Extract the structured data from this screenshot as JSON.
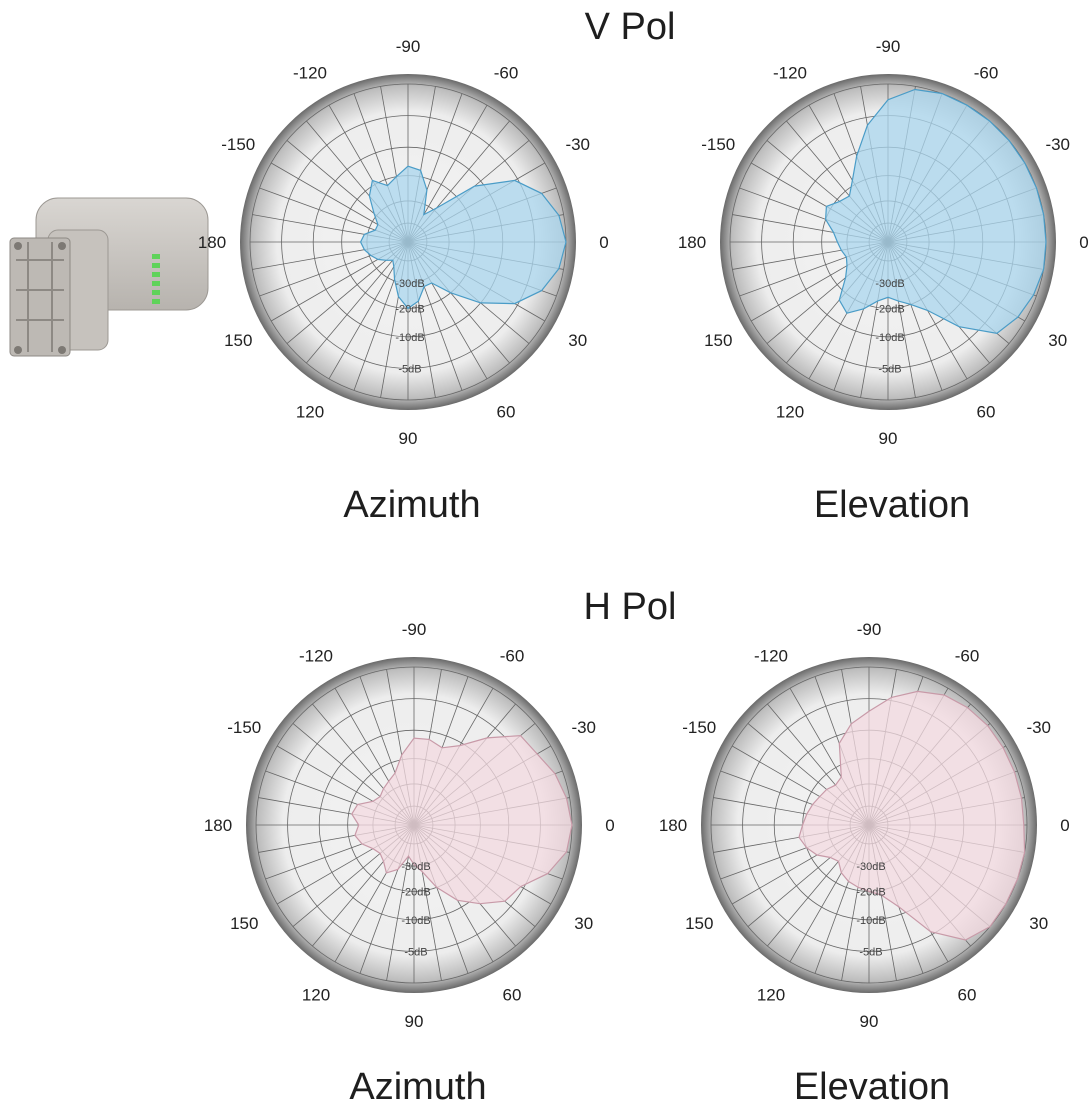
{
  "sections": [
    {
      "title": "V Pol",
      "captions": [
        "Azimuth",
        "Elevation"
      ]
    },
    {
      "title": "H Pol",
      "captions": [
        "Azimuth",
        "Elevation"
      ]
    }
  ],
  "device_image": {
    "name": "antenna-device-photo",
    "led_color": "#5fd35a"
  },
  "colors": {
    "vpol_fill": "#a9d6ee",
    "vpol_stroke": "#4a9cc7",
    "hpol_fill": "#f3d9e0",
    "hpol_stroke": "#c89aa8",
    "grid": "#666666",
    "rim": "#6d6d6d"
  },
  "chart_data": [
    {
      "type": "polar",
      "title": "V Pol",
      "caption": "Azimuth",
      "angle_labels": [
        "-90",
        "-60",
        "-30",
        "0",
        "30",
        "60",
        "90",
        "120",
        "150",
        "180",
        "-150",
        "-120"
      ],
      "radial_labels": [
        "-30dB",
        "-20dB",
        "-10dB",
        "-5dB"
      ],
      "series": [
        {
          "color": "#a9d6ee",
          "theta": [
            0,
            10,
            20,
            30,
            40,
            50,
            60,
            70,
            80,
            90,
            100,
            110,
            120,
            130,
            140,
            150,
            160,
            170,
            180,
            190,
            200,
            210,
            220,
            230,
            240,
            250,
            260,
            270,
            280,
            290,
            300,
            310,
            320,
            330,
            340,
            350
          ],
          "r": [
            1.0,
            0.97,
            0.9,
            0.78,
            0.6,
            0.42,
            0.3,
            0.3,
            0.38,
            0.42,
            0.35,
            0.25,
            0.18,
            0.15,
            0.18,
            0.22,
            0.25,
            0.28,
            0.3,
            0.28,
            0.22,
            0.22,
            0.28,
            0.38,
            0.45,
            0.38,
            0.42,
            0.48,
            0.46,
            0.35,
            0.2,
            0.28,
            0.55,
            0.78,
            0.9,
            0.97
          ]
        }
      ]
    },
    {
      "type": "polar",
      "title": "V Pol",
      "caption": "Elevation",
      "angle_labels": [
        "-90",
        "-60",
        "-30",
        "0",
        "30",
        "60",
        "90",
        "120",
        "150",
        "180",
        "-150",
        "-120"
      ],
      "radial_labels": [
        "-30dB",
        "-20dB",
        "-10dB",
        "-5dB"
      ],
      "series": [
        {
          "color": "#a9d6ee",
          "theta": [
            0,
            10,
            20,
            30,
            40,
            50,
            60,
            70,
            80,
            90,
            100,
            110,
            120,
            130,
            140,
            150,
            160,
            170,
            180,
            190,
            200,
            210,
            220,
            230,
            240,
            250,
            260,
            270,
            280,
            290,
            300,
            310,
            320,
            330,
            340,
            350
          ],
          "r": [
            1.0,
            1.0,
            0.98,
            0.95,
            0.9,
            0.7,
            0.5,
            0.42,
            0.38,
            0.35,
            0.38,
            0.45,
            0.52,
            0.48,
            0.35,
            0.3,
            0.28,
            0.3,
            0.32,
            0.35,
            0.42,
            0.45,
            0.4,
            0.38,
            0.45,
            0.58,
            0.75,
            0.9,
            0.98,
            1.0,
            1.0,
            1.0,
            1.0,
            1.0,
            1.0,
            1.0
          ]
        }
      ]
    },
    {
      "type": "polar",
      "title": "H Pol",
      "caption": "Azimuth",
      "angle_labels": [
        "-90",
        "-60",
        "-30",
        "0",
        "30",
        "60",
        "90",
        "120",
        "150",
        "180",
        "-150",
        "-120"
      ],
      "radial_labels": [
        "-30dB",
        "-20dB",
        "-10dB",
        "-5dB"
      ],
      "series": [
        {
          "color": "#f3d9e0",
          "theta": [
            0,
            10,
            20,
            30,
            40,
            50,
            60,
            70,
            80,
            90,
            100,
            110,
            120,
            130,
            140,
            150,
            160,
            170,
            180,
            190,
            200,
            210,
            220,
            230,
            240,
            250,
            260,
            270,
            280,
            290,
            300,
            310,
            320,
            330,
            340,
            350
          ],
          "r": [
            1.0,
            0.98,
            0.9,
            0.78,
            0.75,
            0.65,
            0.55,
            0.42,
            0.3,
            0.25,
            0.2,
            0.3,
            0.35,
            0.3,
            0.28,
            0.3,
            0.35,
            0.38,
            0.35,
            0.4,
            0.38,
            0.3,
            0.28,
            0.3,
            0.32,
            0.35,
            0.45,
            0.55,
            0.55,
            0.52,
            0.58,
            0.72,
            0.88,
            0.9,
            0.95,
            0.98
          ]
        }
      ]
    },
    {
      "type": "polar",
      "title": "H Pol",
      "caption": "Elevation",
      "angle_labels": [
        "-90",
        "-60",
        "-30",
        "0",
        "30",
        "60",
        "90",
        "120",
        "150",
        "180",
        "-150",
        "-120"
      ],
      "radial_labels": [
        "-30dB",
        "-20dB",
        "-10dB",
        "-5dB"
      ],
      "series": [
        {
          "color": "#f3d9e0",
          "theta": [
            0,
            10,
            20,
            30,
            40,
            50,
            60,
            70,
            80,
            90,
            100,
            110,
            120,
            130,
            140,
            150,
            160,
            170,
            180,
            190,
            200,
            210,
            220,
            230,
            240,
            250,
            260,
            270,
            280,
            290,
            300,
            310,
            320,
            330,
            340,
            350
          ],
          "r": [
            0.98,
            1.0,
            1.0,
            1.0,
            1.0,
            0.95,
            0.78,
            0.55,
            0.45,
            0.42,
            0.4,
            0.38,
            0.35,
            0.3,
            0.32,
            0.38,
            0.42,
            0.45,
            0.42,
            0.4,
            0.38,
            0.36,
            0.35,
            0.33,
            0.35,
            0.55,
            0.65,
            0.72,
            0.82,
            0.9,
            0.95,
            0.97,
            0.98,
            0.98,
            0.98,
            0.98
          ]
        }
      ]
    }
  ]
}
